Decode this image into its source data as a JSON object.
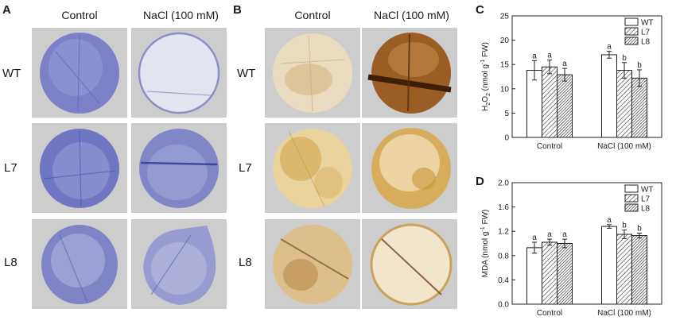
{
  "panels": {
    "A": {
      "label": "A",
      "columns": [
        "Control",
        "NaCl (100 mM)"
      ],
      "rows": [
        "WT",
        "L7",
        "L8"
      ]
    },
    "B": {
      "label": "B",
      "columns": [
        "Control",
        "NaCl (100 mM)"
      ],
      "rows": [
        "WT",
        "L7",
        "L8"
      ]
    },
    "C": {
      "label": "C"
    },
    "D": {
      "label": "D"
    }
  },
  "stain_colors": {
    "nbt_blue": "#4a55b8",
    "dab_brown": "#8a5a1e"
  },
  "chart_data": [
    {
      "type": "bar",
      "panel": "C",
      "ylabel_main": "H",
      "ylabel_sub1": "2",
      "ylabel_mid": "O",
      "ylabel_sub2": "2",
      "ylabel_tail": " (nmol g",
      "ylabel_sup": "-1",
      "ylabel_end": " FW)",
      "categories": [
        "Control",
        "NaCl (100 mM)"
      ],
      "ylim": [
        0,
        25
      ],
      "yticks": [
        0,
        5,
        10,
        15,
        20,
        25
      ],
      "legend_position": "top-right",
      "series": [
        {
          "name": "WT",
          "values": [
            13.8,
            17.0
          ],
          "errors": [
            2.0,
            0.7
          ],
          "letters": [
            "a",
            "a"
          ],
          "pattern": "none"
        },
        {
          "name": "L7",
          "values": [
            14.5,
            13.8
          ],
          "errors": [
            1.4,
            1.6
          ],
          "letters": [
            "a",
            "b"
          ],
          "pattern": "hatch"
        },
        {
          "name": "L8",
          "values": [
            12.9,
            12.2
          ],
          "errors": [
            1.3,
            1.7
          ],
          "letters": [
            "a",
            "b"
          ],
          "pattern": "dense"
        }
      ]
    },
    {
      "type": "bar",
      "panel": "D",
      "ylabel_main": "MDA (nmol g",
      "ylabel_sup": "-1",
      "ylabel_end": " FW)",
      "categories": [
        "Control",
        "NaCl (100 mM)"
      ],
      "ylim": [
        0.0,
        2.0
      ],
      "yticks": [
        "0.0",
        "0.4",
        "0.8",
        "1.2",
        "1.6",
        "2.0"
      ],
      "legend_position": "top-right",
      "series": [
        {
          "name": "WT",
          "values": [
            0.93,
            1.28
          ],
          "errors": [
            0.09,
            0.03
          ],
          "letters": [
            "a",
            "a"
          ],
          "pattern": "none"
        },
        {
          "name": "L7",
          "values": [
            1.02,
            1.15
          ],
          "errors": [
            0.05,
            0.07
          ],
          "letters": [
            "a",
            "b"
          ],
          "pattern": "hatch"
        },
        {
          "name": "L8",
          "values": [
            1.0,
            1.13
          ],
          "errors": [
            0.07,
            0.04
          ],
          "letters": [
            "a",
            "b"
          ],
          "pattern": "dense"
        }
      ]
    }
  ]
}
